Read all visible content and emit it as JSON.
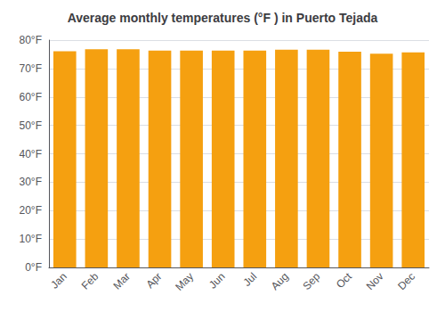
{
  "chart_data": {
    "type": "bar",
    "title": "Average monthly temperatures (°F ) in Puerto Tejada",
    "categories": [
      "Jan",
      "Feb",
      "Mar",
      "Apr",
      "May",
      "Jun",
      "Jul",
      "Aug",
      "Sep",
      "Oct",
      "Nov",
      "Dec"
    ],
    "values": [
      76.1,
      76.8,
      76.8,
      76.3,
      76.3,
      76.3,
      76.3,
      76.6,
      76.6,
      75.9,
      75.2,
      75.7
    ],
    "color": "#F5A010",
    "ylim": [
      0,
      80
    ],
    "yticks": [
      {
        "value": 0,
        "label": "0°F"
      },
      {
        "value": 10,
        "label": "10°F"
      },
      {
        "value": 20,
        "label": "20°F"
      },
      {
        "value": 30,
        "label": "30°F"
      },
      {
        "value": 40,
        "label": "40°F"
      },
      {
        "value": 50,
        "label": "50°F"
      },
      {
        "value": 60,
        "label": "60°F"
      },
      {
        "value": 70,
        "label": "70°F"
      },
      {
        "value": 80,
        "label": "80°F"
      }
    ],
    "grid": true
  }
}
